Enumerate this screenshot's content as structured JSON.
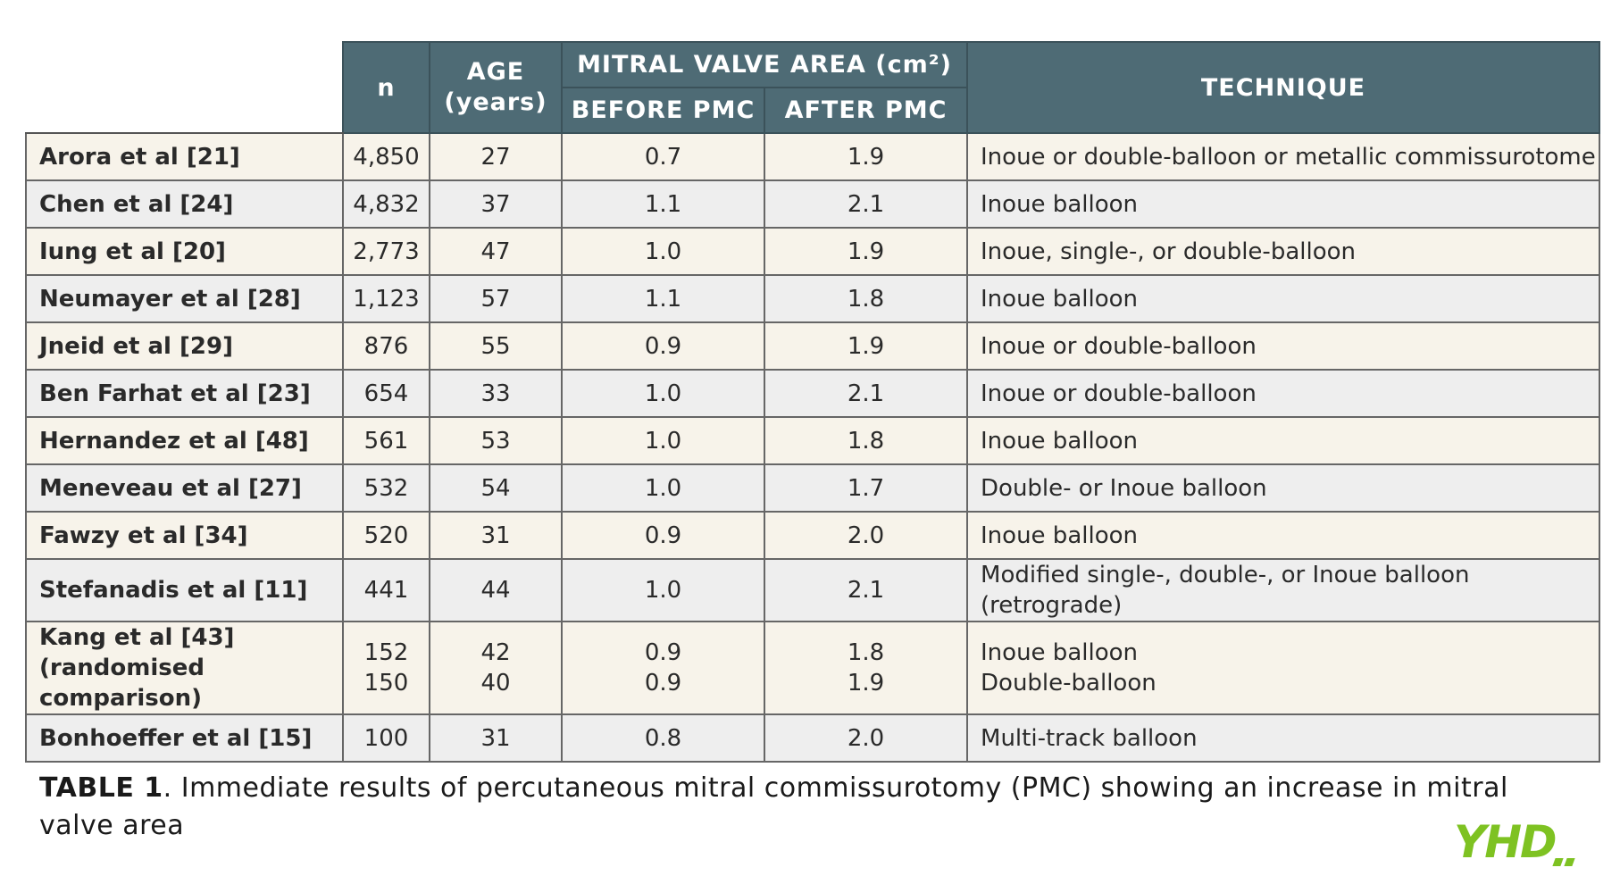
{
  "table": {
    "headers": {
      "n": "n",
      "age": [
        "AGE",
        "(years)"
      ],
      "mva": "MITRAL VALVE AREA (cm²)",
      "before": "BEFORE PMC",
      "after": "AFTER PMC",
      "technique": "TECHNIQUE"
    },
    "rows": [
      {
        "study": [
          "Arora et al [21]"
        ],
        "n": [
          "4,850"
        ],
        "age": [
          "27"
        ],
        "before": [
          "0.7"
        ],
        "after": [
          "1.9"
        ],
        "technique": [
          "Inoue or double-balloon or metallic commissurotome"
        ]
      },
      {
        "study": [
          "Chen et al [24]"
        ],
        "n": [
          "4,832"
        ],
        "age": [
          "37"
        ],
        "before": [
          "1.1"
        ],
        "after": [
          "2.1"
        ],
        "technique": [
          "Inoue balloon"
        ]
      },
      {
        "study": [
          "Iung et al [20]"
        ],
        "n": [
          "2,773"
        ],
        "age": [
          "47"
        ],
        "before": [
          "1.0"
        ],
        "after": [
          "1.9"
        ],
        "technique": [
          "Inoue, single-, or double-balloon"
        ]
      },
      {
        "study": [
          "Neumayer et al [28]"
        ],
        "n": [
          "1,123"
        ],
        "age": [
          "57"
        ],
        "before": [
          "1.1"
        ],
        "after": [
          "1.8"
        ],
        "technique": [
          "Inoue balloon"
        ]
      },
      {
        "study": [
          "Jneid et al [29]"
        ],
        "n": [
          "876"
        ],
        "age": [
          "55"
        ],
        "before": [
          "0.9"
        ],
        "after": [
          "1.9"
        ],
        "technique": [
          "Inoue or double-balloon"
        ]
      },
      {
        "study": [
          "Ben Farhat et al [23]"
        ],
        "n": [
          "654"
        ],
        "age": [
          "33"
        ],
        "before": [
          "1.0"
        ],
        "after": [
          "2.1"
        ],
        "technique": [
          "Inoue or double-balloon"
        ]
      },
      {
        "study": [
          "Hernandez et al [48]"
        ],
        "n": [
          "561"
        ],
        "age": [
          "53"
        ],
        "before": [
          "1.0"
        ],
        "after": [
          "1.8"
        ],
        "technique": [
          "Inoue balloon"
        ]
      },
      {
        "study": [
          "Meneveau et al [27]"
        ],
        "n": [
          "532"
        ],
        "age": [
          "54"
        ],
        "before": [
          "1.0"
        ],
        "after": [
          "1.7"
        ],
        "technique": [
          "Double- or Inoue balloon"
        ]
      },
      {
        "study": [
          "Fawzy et al [34]"
        ],
        "n": [
          "520"
        ],
        "age": [
          "31"
        ],
        "before": [
          "0.9"
        ],
        "after": [
          "2.0"
        ],
        "technique": [
          "Inoue balloon"
        ]
      },
      {
        "study": [
          "Stefanadis et al [11]"
        ],
        "n": [
          "441"
        ],
        "age": [
          "44"
        ],
        "before": [
          "1.0"
        ],
        "after": [
          "2.1"
        ],
        "technique": [
          "Modified single-, double-, or Inoue balloon (retrograde)"
        ]
      },
      {
        "study": [
          "Kang et al [43]",
          "(randomised comparison)"
        ],
        "n": [
          "152",
          "150"
        ],
        "age": [
          "42",
          "40"
        ],
        "before": [
          "0.9",
          "0.9"
        ],
        "after": [
          "1.8",
          "1.9"
        ],
        "technique": [
          "Inoue balloon",
          "Double-balloon"
        ]
      },
      {
        "study": [
          "Bonhoeffer et al [15]"
        ],
        "n": [
          "100"
        ],
        "age": [
          "31"
        ],
        "before": [
          "0.8"
        ],
        "after": [
          "2.0"
        ],
        "technique": [
          "Multi-track balloon"
        ]
      }
    ]
  },
  "caption": {
    "label": "TABLE 1",
    "text": ". Immediate results of percutaneous mitral commissurotomy (PMC) showing an increase in mitral valve area"
  },
  "logo": {
    "text": "YHD",
    "color": "#7ec222"
  },
  "colors": {
    "header_bg": "#4e6b75",
    "row_odd": "#f7f3ea",
    "row_even": "#eeeeee"
  }
}
